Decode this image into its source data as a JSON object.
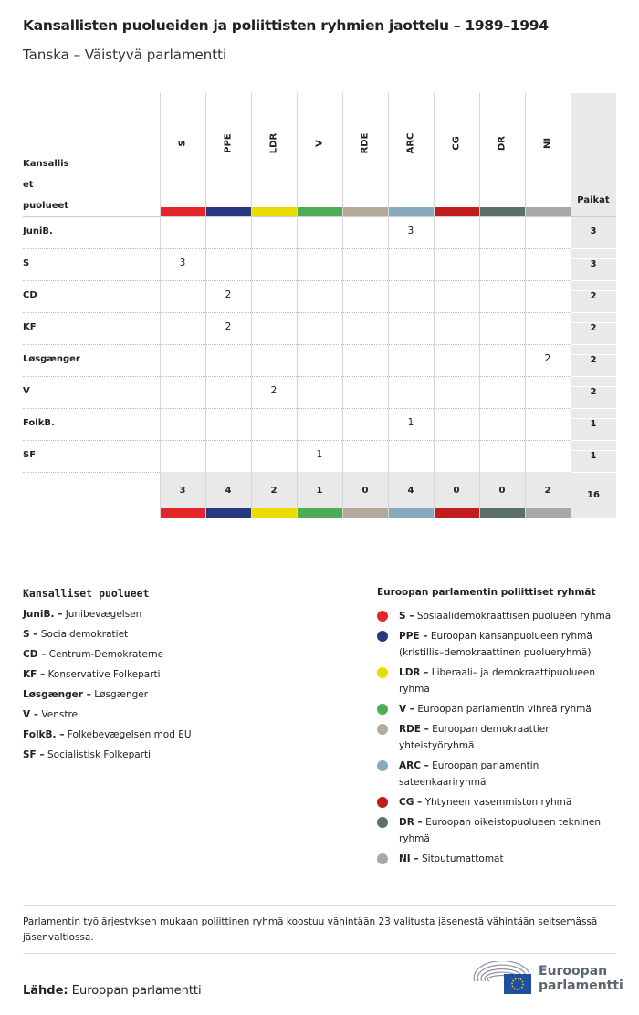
{
  "title": "Kansallisten puolueiden ja poliittisten ryhmien jaottelu – 1989–1994",
  "subtitle": "Tanska – Väistyvä parlamentti",
  "chart_data": {
    "type": "table",
    "row_header": "Kansallis et puolueet",
    "total_header": "Paikat",
    "groups": [
      {
        "code": "S",
        "color": "#e4262a"
      },
      {
        "code": "PPE",
        "color": "#273880"
      },
      {
        "code": "LDR",
        "color": "#ebdc00"
      },
      {
        "code": "V",
        "color": "#4dac55"
      },
      {
        "code": "RDE",
        "color": "#b4aa9c"
      },
      {
        "code": "ARC",
        "color": "#85aac0"
      },
      {
        "code": "CG",
        "color": "#c11d1f"
      },
      {
        "code": "DR",
        "color": "#5a7068"
      },
      {
        "code": "NI",
        "color": "#a8a8a8"
      }
    ],
    "rows": [
      {
        "party": "JuniB.",
        "values": [
          null,
          null,
          null,
          null,
          null,
          3,
          null,
          null,
          null
        ],
        "total": 3
      },
      {
        "party": "S",
        "values": [
          3,
          null,
          null,
          null,
          null,
          null,
          null,
          null,
          null
        ],
        "total": 3
      },
      {
        "party": "CD",
        "values": [
          null,
          2,
          null,
          null,
          null,
          null,
          null,
          null,
          null
        ],
        "total": 2
      },
      {
        "party": "KF",
        "values": [
          null,
          2,
          null,
          null,
          null,
          null,
          null,
          null,
          null
        ],
        "total": 2
      },
      {
        "party": "Løsgænger",
        "values": [
          null,
          null,
          null,
          null,
          null,
          null,
          null,
          null,
          2
        ],
        "total": 2
      },
      {
        "party": "V",
        "values": [
          null,
          null,
          2,
          null,
          null,
          null,
          null,
          null,
          null
        ],
        "total": 2
      },
      {
        "party": "FolkB.",
        "values": [
          null,
          null,
          null,
          null,
          null,
          1,
          null,
          null,
          null
        ],
        "total": 1
      },
      {
        "party": "SF",
        "values": [
          null,
          null,
          null,
          1,
          null,
          null,
          null,
          null,
          null
        ],
        "total": 1
      }
    ],
    "column_totals": [
      3,
      4,
      2,
      1,
      0,
      4,
      0,
      0,
      2
    ],
    "grand_total": 16
  },
  "national_legend": {
    "title": "Kansalliset puolueet",
    "items": [
      {
        "abbr": "JuniB. –",
        "name": "Junibevægelsen"
      },
      {
        "abbr": "S –",
        "name": "Socialdemokratiet"
      },
      {
        "abbr": "CD –",
        "name": "Centrum-Demokraterne"
      },
      {
        "abbr": "KF –",
        "name": "Konservative Folkeparti"
      },
      {
        "abbr": "Løsgænger –",
        "name": "Løsgænger"
      },
      {
        "abbr": "V –",
        "name": "Venstre"
      },
      {
        "abbr": "FolkB. –",
        "name": "Folkebevægelsen mod EU"
      },
      {
        "abbr": "SF –",
        "name": "Socialistisk Folkeparti"
      }
    ]
  },
  "group_legend": {
    "title": "Euroopan parlamentin poliittiset ryhmät",
    "items": [
      {
        "abbr": "S –",
        "name": "Sosiaalidemokraattisen puolueen ryhmä",
        "color": "#e4262a"
      },
      {
        "abbr": "PPE –",
        "name": "Euroopan kansanpuolueen ryhmä (kristillis–demokraattinen puolueryhmä)",
        "color": "#273880"
      },
      {
        "abbr": "LDR –",
        "name": "Liberaali– ja demokraattipuolueen ryhmä",
        "color": "#ebdc00"
      },
      {
        "abbr": "V –",
        "name": "Euroopan parlamentin vihreä ryhmä",
        "color": "#4dac55"
      },
      {
        "abbr": "RDE –",
        "name": "Euroopan demokraattien yhteistyöryhmä",
        "color": "#b4aa9c"
      },
      {
        "abbr": "ARC –",
        "name": "Euroopan parlamentin sateenkaariryhmä",
        "color": "#85aac0"
      },
      {
        "abbr": "CG –",
        "name": "Yhtyneen vasemmiston ryhmä",
        "color": "#c11d1f"
      },
      {
        "abbr": "DR –",
        "name": "Euroopan oikeistopuolueen tekninen ryhmä",
        "color": "#5a7068"
      },
      {
        "abbr": "NI –",
        "name": "Sitoutumattomat",
        "color": "#a8a8a8"
      }
    ]
  },
  "note": "Parlamentin työjärjestyksen mukaan poliittinen ryhmä koostuu vähintään 23 valitusta jäsenestä vähintään seitsemässä jäsenvaltiossa.",
  "source_label": "Lähde:",
  "source": "Euroopan parlamentti",
  "logo": {
    "line1": "Euroopan",
    "line2": "parlamentti"
  }
}
